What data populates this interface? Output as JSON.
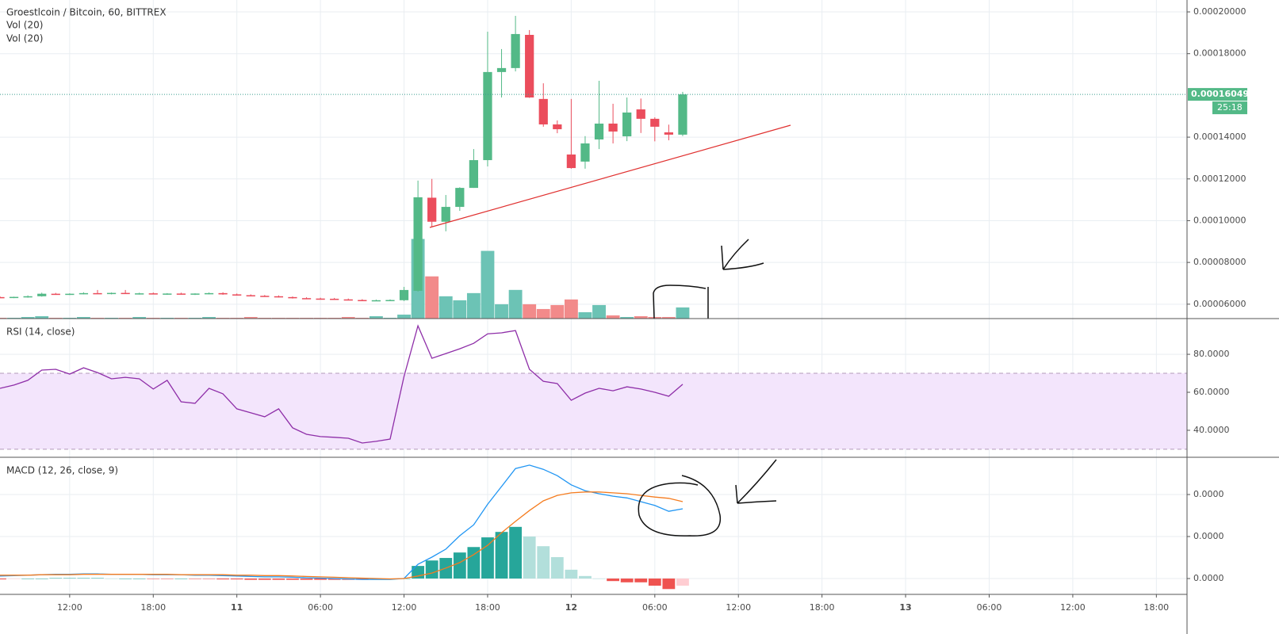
{
  "chart_data": [
    {
      "type": "candlestick",
      "title": "Groestlcoin / Bitcoin, 60, BITTREX",
      "indicators": [
        "Vol (20)",
        "Vol (20)"
      ],
      "x": [
        -17,
        -16,
        -15,
        -14,
        -13,
        -12,
        -11,
        -10,
        -9,
        -8,
        -7,
        -6,
        -5,
        -4,
        -3,
        -2,
        -1,
        0,
        1,
        2,
        3,
        4,
        5,
        6,
        7,
        8,
        9,
        10,
        11,
        12,
        13,
        14,
        15,
        16,
        17,
        18,
        19,
        20,
        21,
        22,
        23,
        24,
        25,
        26,
        27,
        28,
        29,
        30,
        31,
        32
      ],
      "open": [
        6.34e-05,
        6.32e-05,
        6.35e-05,
        6.38e-05,
        6.5e-05,
        6.48e-05,
        6.5e-05,
        6.53e-05,
        6.51e-05,
        6.54e-05,
        6.5e-05,
        6.52e-05,
        6.49e-05,
        6.51e-05,
        6.48e-05,
        6.51e-05,
        6.53e-05,
        6.47e-05,
        6.43e-05,
        6.4e-05,
        6.38e-05,
        6.34e-05,
        6.29e-05,
        6.27e-05,
        6.26e-05,
        6.23e-05,
        6.2e-05,
        6.18e-05,
        6.19e-05,
        6.19e-05,
        6.64e-05,
        0.000111,
        9.95e-05,
        0.0001066,
        0.0001157,
        0.000129,
        0.0001712,
        0.0001731,
        0.000189,
        0.0001583,
        0.0001461,
        0.0001317,
        0.0001283,
        0.0001389,
        0.0001465,
        0.0001404,
        0.0001533,
        0.0001488,
        0.0001423,
        0.0001412
      ],
      "high": [
        6.38e-05,
        6.36e-05,
        6.42e-05,
        6.55e-05,
        6.54e-05,
        6.52e-05,
        6.57e-05,
        6.68e-05,
        6.56e-05,
        6.68e-05,
        6.55e-05,
        6.56e-05,
        6.53e-05,
        6.55e-05,
        6.52e-05,
        6.56e-05,
        6.57e-05,
        6.51e-05,
        6.47e-05,
        6.44e-05,
        6.42e-05,
        6.37e-05,
        6.33e-05,
        6.31e-05,
        6.3e-05,
        6.27e-05,
        6.24e-05,
        6.22e-05,
        6.23e-05,
        6.83e-05,
        0.0001192,
        0.00012,
        0.0001123,
        0.000116,
        0.0001343,
        0.0001905,
        0.0001822,
        0.0001981,
        0.0001913,
        0.0001658,
        0.000148,
        0.0001583,
        0.0001405,
        0.000167,
        0.000156,
        0.000159,
        0.0001585,
        0.0001495,
        0.000146,
        0.0001617
      ],
      "low": [
        6.3e-05,
        6.29e-05,
        6.31e-05,
        6.36e-05,
        6.45e-05,
        6.44e-05,
        6.47e-05,
        6.49e-05,
        6.47e-05,
        6.5e-05,
        6.46e-05,
        6.47e-05,
        6.45e-05,
        6.46e-05,
        6.44e-05,
        6.47e-05,
        6.45e-05,
        6.41e-05,
        6.38e-05,
        6.35e-05,
        6.32e-05,
        6.27e-05,
        6.24e-05,
        6.22e-05,
        6.21e-05,
        6.18e-05,
        6.16e-05,
        6.15e-05,
        6.16e-05,
        6.15e-05,
        6.6e-05,
        9.72e-05,
        9.49e-05,
        0.0001047,
        0.0001157,
        0.000126,
        0.000159,
        0.0001715,
        0.0001588,
        0.000145,
        0.0001419,
        0.0001249,
        0.0001249,
        0.0001343,
        0.000137,
        0.0001381,
        0.000142,
        0.000138,
        0.0001385,
        0.0001405
      ],
      "close": [
        6.32e-05,
        6.35e-05,
        6.38e-05,
        6.5e-05,
        6.48e-05,
        6.5e-05,
        6.53e-05,
        6.51e-05,
        6.54e-05,
        6.5e-05,
        6.52e-05,
        6.49e-05,
        6.51e-05,
        6.48e-05,
        6.51e-05,
        6.53e-05,
        6.47e-05,
        6.43e-05,
        6.4e-05,
        6.38e-05,
        6.34e-05,
        6.29e-05,
        6.27e-05,
        6.26e-05,
        6.23e-05,
        6.2e-05,
        6.18e-05,
        6.19e-05,
        6.2e-05,
        6.68e-05,
        0.0001112,
        9.95e-05,
        0.0001066,
        0.0001157,
        0.000129,
        0.0001712,
        0.0001731,
        0.0001894,
        0.000159,
        0.0001461,
        0.0001438,
        0.0001252,
        0.000137,
        0.0001465,
        0.0001427,
        0.0001518,
        0.0001488,
        0.000145,
        0.0001412,
        0.00016049
      ],
      "volume": [
        1,
        1,
        2,
        3,
        1,
        1,
        2,
        1,
        1,
        1,
        2,
        1,
        1,
        1,
        1,
        2,
        1,
        1,
        2,
        1,
        1,
        1,
        1,
        1,
        1,
        2,
        1,
        3,
        1,
        5,
        100,
        53,
        28,
        23,
        32,
        85,
        18,
        36,
        18,
        12,
        17,
        24,
        8,
        17,
        4,
        2,
        3,
        2,
        2,
        14
      ],
      "volume_lim": [
        0,
        400
      ],
      "up_color": "#53b987",
      "down_color": "#eb4d5c",
      "volume_up_color": "#6cc3b5",
      "volume_down_color": "#f28a8a",
      "xlim": [
        -17,
        68.2
      ],
      "ylim": [
        5.31e-05,
        0.0002057
      ],
      "yticks": [
        {
          "value": 6e-05,
          "label": "0.00006000"
        },
        {
          "value": 8e-05,
          "label": "0.00008000"
        },
        {
          "value": 0.0001,
          "label": "0.00010000"
        },
        {
          "value": 0.00012,
          "label": "0.00012000"
        },
        {
          "value": 0.00014,
          "label": "0.00014000"
        },
        {
          "value": 0.00018,
          "label": "0.00018000"
        },
        {
          "value": 0.0002,
          "label": "0.00020000"
        }
      ],
      "last_price": 0.00016049,
      "countdown": "25:18",
      "grid": true
    },
    {
      "type": "line",
      "title": "RSI (14, close)",
      "x": [
        -17,
        -16,
        -15,
        -14,
        -13,
        -12,
        -11,
        -10,
        -9,
        -8,
        -7,
        -6,
        -5,
        -4,
        -3,
        -2,
        -1,
        0,
        1,
        2,
        3,
        4,
        5,
        6,
        7,
        8,
        9,
        10,
        11,
        12,
        13,
        14,
        15,
        16,
        17,
        18,
        19,
        20,
        21,
        22,
        23,
        24,
        25,
        26,
        27,
        28,
        29,
        30,
        31,
        32
      ],
      "series": [
        {
          "name": "RSI",
          "color": "#8e2ea8",
          "values": [
            62.1,
            63.8,
            66.3,
            71.7,
            72.1,
            69.6,
            72.9,
            70.4,
            67.1,
            67.9,
            67.1,
            61.7,
            66.3,
            55,
            54.2,
            62.1,
            59.2,
            51.3,
            49.2,
            47.1,
            51.3,
            41.3,
            37.9,
            36.7,
            36.3,
            35.8,
            33.3,
            34.2,
            35.4,
            68.3,
            95,
            77.9,
            80.4,
            82.9,
            85.8,
            90.8,
            91.3,
            92.5,
            72.1,
            65.8,
            64.6,
            55.8,
            59.6,
            62.1,
            60.8,
            62.9,
            61.7,
            60,
            57.9,
            64.2
          ]
        }
      ],
      "bands": [
        30,
        70
      ],
      "band_color": "#f3e5fc",
      "xlim": [
        -17,
        68.2
      ],
      "ylim": [
        25.8,
        98.8
      ],
      "yticks": [
        {
          "value": 40,
          "label": "40.0000"
        },
        {
          "value": 60,
          "label": "60.0000"
        },
        {
          "value": 80,
          "label": "80.0000"
        }
      ],
      "grid": true
    },
    {
      "type": "macd",
      "title": "MACD (12, 26, close, 9)",
      "x": [
        -17,
        -16,
        -15,
        -14,
        -13,
        -12,
        -11,
        -10,
        -9,
        -8,
        -7,
        -6,
        -5,
        -4,
        -3,
        -2,
        -1,
        0,
        1,
        2,
        3,
        4,
        5,
        6,
        7,
        8,
        9,
        10,
        11,
        12,
        13,
        14,
        15,
        16,
        17,
        18,
        19,
        20,
        21,
        22,
        23,
        24,
        25,
        26,
        27,
        28,
        29,
        30,
        31,
        32
      ],
      "series": [
        {
          "name": "MACD",
          "color": "#2196f3",
          "values": [
            6e-07,
            7e-07,
            8e-07,
            9e-07,
            1e-06,
            1e-06,
            1.1e-06,
            1.1e-06,
            1e-06,
            1e-06,
            1e-06,
            9e-07,
            9e-07,
            9e-07,
            8e-07,
            8e-07,
            7e-07,
            6e-07,
            5e-07,
            4e-07,
            4e-07,
            3e-07,
            2e-07,
            1e-07,
            0,
            -1e-07,
            -2e-07,
            -2e-07,
            -2e-07,
            0,
            3.4e-06,
            5.1e-06,
            7e-06,
            1.02e-05,
            1.28e-05,
            1.77e-05,
            2.19e-05,
            2.62e-05,
            2.7e-05,
            2.6e-05,
            2.45e-05,
            2.23e-05,
            2.09e-05,
            2.02e-05,
            1.96e-05,
            1.92e-05,
            1.83e-05,
            1.74e-05,
            1.6e-05,
            1.66e-05
          ]
        },
        {
          "name": "Signal",
          "color": "#f57c1f",
          "values": [
            8e-07,
            8e-07,
            8e-07,
            9e-07,
            9e-07,
            9e-07,
            1e-06,
            1e-06,
            1e-06,
            1e-06,
            1e-06,
            1e-06,
            1e-06,
            9e-07,
            9e-07,
            9e-07,
            9e-07,
            8e-07,
            8e-07,
            7e-07,
            7e-07,
            6e-07,
            5e-07,
            4e-07,
            3e-07,
            2e-07,
            1e-07,
            0,
            -1e-07,
            0,
            6e-07,
            1.3e-06,
            2.5e-06,
            3.8e-06,
            5.7e-06,
            7.9e-06,
            1.09e-05,
            1.36e-05,
            1.62e-05,
            1.85e-05,
            1.98e-05,
            2.04e-05,
            2.06e-05,
            2.06e-05,
            2.04e-05,
            2.02e-05,
            1.98e-05,
            1.94e-05,
            1.91e-05,
            1.83e-05
          ]
        }
      ],
      "histogram": [
        -2e-07,
        -1e-07,
        0,
        0,
        1e-07,
        1e-07,
        1e-07,
        1e-07,
        0,
        0,
        0,
        -1e-07,
        -1e-07,
        0,
        -1e-07,
        -1e-07,
        -2e-07,
        -2e-07,
        -3e-07,
        -3e-07,
        -3e-07,
        -3e-07,
        -3e-07,
        -3e-07,
        -3e-07,
        -3e-07,
        -3e-07,
        -2e-07,
        -1e-07,
        0,
        3e-06,
        4.3e-06,
        4.9e-06,
        6.2e-06,
        7.5e-06,
        9.8e-06,
        1.11e-05,
        1.23e-05,
        1e-05,
        7.7e-06,
        5.1e-06,
        2.1e-06,
        6e-07,
        0,
        -6e-07,
        -9e-07,
        -9e-07,
        -1.7e-06,
        -2.5e-06,
        -1.7e-06
      ],
      "histogram_colors": {
        "up_rising": "#26a69a",
        "up_falling": "#b2dfdb",
        "down_falling": "#ef5350",
        "down_rising": "#ffcdd2"
      },
      "xlim": [
        -17,
        68.2
      ],
      "ylim": [
        -3.77e-06,
        2.887e-05
      ],
      "yticks": [
        {
          "value": 0,
          "label": "0.0000"
        },
        {
          "value": 1e-05,
          "label": "0.0000"
        },
        {
          "value": 2e-05,
          "label": "0.0000"
        }
      ],
      "xticks": [
        {
          "value": -12,
          "label": "12:00"
        },
        {
          "value": -6,
          "label": "18:00"
        },
        {
          "value": 0,
          "label": "11"
        },
        {
          "value": 6,
          "label": "06:00"
        },
        {
          "value": 12,
          "label": "12:00"
        },
        {
          "value": 18,
          "label": "18:00"
        },
        {
          "value": 24,
          "label": "12"
        },
        {
          "value": 30,
          "label": "06:00"
        },
        {
          "value": 36,
          "label": "12:00"
        },
        {
          "value": 42,
          "label": "18:00"
        },
        {
          "value": 48,
          "label": "13"
        },
        {
          "value": 54,
          "label": "06:00"
        },
        {
          "value": 60,
          "label": "12:00"
        },
        {
          "value": 66,
          "label": "18:00"
        }
      ],
      "grid": true
    }
  ]
}
